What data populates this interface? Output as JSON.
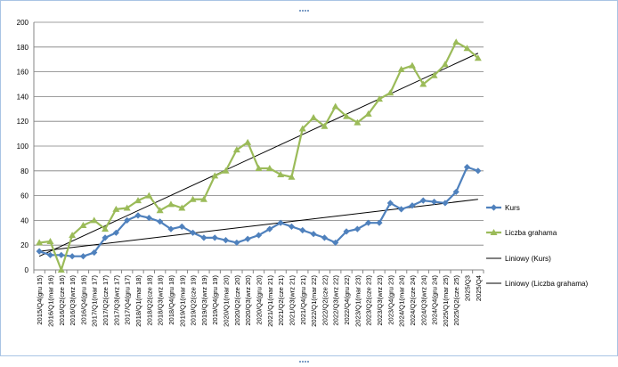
{
  "chart_data": {
    "type": "line",
    "title": "",
    "xlabel": "",
    "ylabel": "",
    "ylim": [
      0,
      200
    ],
    "ytick_step": 20,
    "grid": "horizontal",
    "legend_position": "right",
    "categories": [
      "2015/Q4(gru 15)",
      "2016/Q1(mar 16)",
      "2016/Q2(cze 16)",
      "2016/Q3(wrz 16)",
      "2016/Q4(gru 16)",
      "2017/Q1(mar 17)",
      "2017/Q2(cze 17)",
      "2017/Q3(wrz 17)",
      "2017/Q4(gru 17)",
      "2018/Q1(mar 18)",
      "2018/Q2(cze 18)",
      "2018/Q3(wrz 18)",
      "2018/Q4(gru 18)",
      "2019/Q1(mar 19)",
      "2019/Q2(cze 19)",
      "2019/Q3(wrz 19)",
      "2019/Q4(gru 19)",
      "2020/Q1(mar 20)",
      "2020/Q2(cze 20)",
      "2020/Q3(wrz 20)",
      "2020/Q4(gru 20)",
      "2021/Q1(mar 21)",
      "2021/Q2(cze 21)",
      "2021/Q3(wrz 21)",
      "2021/Q4(gru 21)",
      "2022/Q1(mar 22)",
      "2022/Q2(cze 22)",
      "2022/Q3(wrz 22)",
      "2022/Q4(gru 22)",
      "2023/Q1(mar 23)",
      "2023/Q2(cze 23)",
      "2023/Q3(wrz 23)",
      "2023/Q4(gru 23)",
      "2024/Q1(mar 24)",
      "2024/Q2(cze 24)",
      "2024/Q3(wrz 24)",
      "2024/Q4(gru 24)",
      "2025/Q1(mar 25)",
      "2025/Q2(cze 25)",
      "2025/Q3",
      "2025/Q4"
    ],
    "series": [
      {
        "name": "Kurs",
        "color": "#4f81bd",
        "marker": "diamond",
        "values": [
          15,
          12,
          12,
          11,
          11,
          14,
          26,
          30,
          40,
          44,
          42,
          39,
          33,
          35,
          30,
          26,
          26,
          24,
          22,
          25,
          28,
          33,
          38,
          35,
          32,
          29,
          26,
          22,
          31,
          33,
          38,
          38,
          54,
          49,
          52,
          56,
          55,
          54,
          63,
          83,
          80
        ]
      },
      {
        "name": "Liczba grahama",
        "color": "#9bbb59",
        "marker": "triangle",
        "values": [
          22,
          23,
          0,
          28,
          36,
          40,
          33,
          49,
          50,
          56,
          60,
          48,
          53,
          50,
          57,
          57,
          76,
          80,
          97,
          103,
          82,
          82,
          77,
          75,
          114,
          123,
          116,
          132,
          124,
          119,
          126,
          138,
          143,
          162,
          165,
          150,
          157,
          166,
          184,
          179,
          171
        ]
      }
    ],
    "trendlines": [
      {
        "name": "Liniowy (Kurs)",
        "of": "Kurs",
        "type": "linear",
        "start": 15,
        "end": 57,
        "color": "#000000"
      },
      {
        "name": "Liniowy (Liczba grahama)",
        "of": "Liczba grahama",
        "type": "linear",
        "start": 11,
        "end": 175,
        "color": "#000000"
      }
    ]
  }
}
